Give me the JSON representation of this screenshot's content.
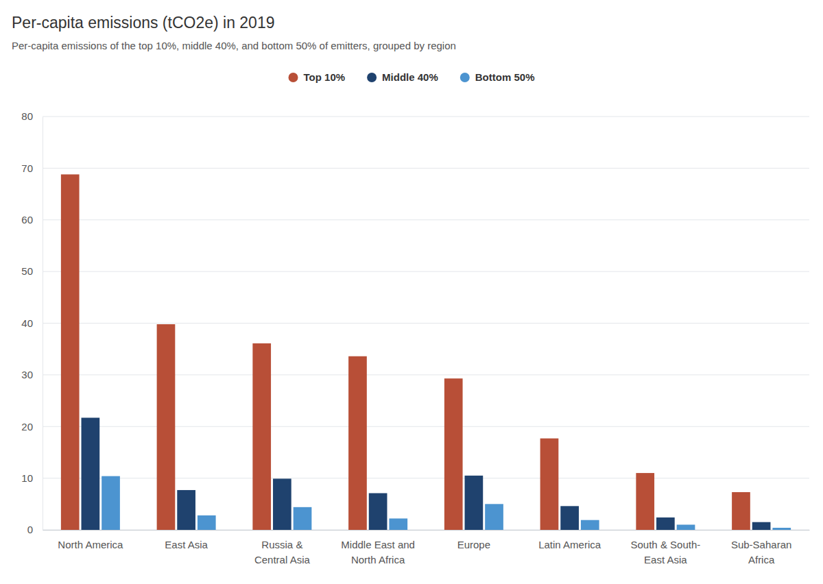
{
  "chart_data": {
    "type": "bar",
    "title": "Per-capita emissions (tCO2e) in 2019",
    "subtitle": "Per-capita emissions of the top 10%, middle 40%, and bottom 50% of emitters, grouped by region",
    "categories": [
      "North America",
      "East Asia",
      "Russia & Central Asia",
      "Middle East and North Africa",
      "Europe",
      "Latin America",
      "South & South-East Asia",
      "Sub-Saharan Africa"
    ],
    "series": [
      {
        "name": "Top 10%",
        "color": "#b84f37",
        "values": [
          68.8,
          39.8,
          36.1,
          33.6,
          29.3,
          17.7,
          11.0,
          7.3
        ]
      },
      {
        "name": "Middle 40%",
        "color": "#1f426e",
        "values": [
          21.7,
          7.7,
          9.9,
          7.1,
          10.5,
          4.6,
          2.4,
          1.5
        ]
      },
      {
        "name": "Bottom 50%",
        "color": "#4c94d0",
        "values": [
          10.4,
          2.8,
          4.4,
          2.2,
          5.0,
          1.9,
          1.0,
          0.4
        ]
      }
    ],
    "ylim": [
      0,
      80
    ],
    "yticks": [
      0,
      10,
      20,
      30,
      40,
      50,
      60,
      70,
      80
    ],
    "grid": true,
    "legend": "top"
  }
}
